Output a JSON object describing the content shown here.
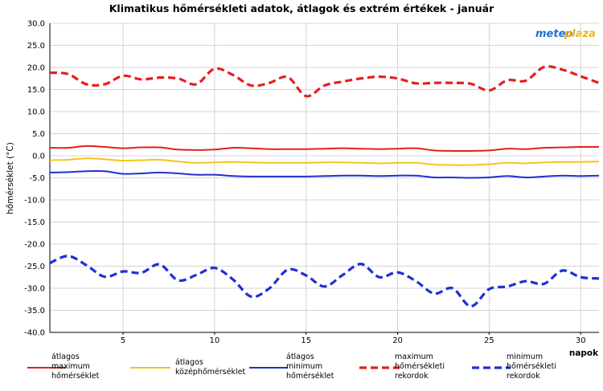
{
  "chart_data": {
    "type": "line",
    "title": "Klimatikus hőmérsékleti adatok, átlagok és extrém értékek - január",
    "ylabel": "hőmérséklet (°C)",
    "xlabel": "napok",
    "xlim": [
      1,
      31
    ],
    "ylim": [
      -40,
      30
    ],
    "y_ticks": [
      "30.0",
      "25.0",
      "20.0",
      "15.0",
      "10.0",
      "5.0",
      "0.0",
      "-5.0",
      "-10.0",
      "-15.0",
      "-20.0",
      "-25.0",
      "-30.0",
      "-35.0",
      "-40.0"
    ],
    "x_ticks": [
      "5",
      "10",
      "15",
      "20",
      "25",
      "30"
    ],
    "grid": true,
    "brand": "meteoplaza",
    "x": [
      1,
      2,
      3,
      4,
      5,
      6,
      7,
      8,
      9,
      10,
      11,
      12,
      13,
      14,
      15,
      16,
      17,
      18,
      19,
      20,
      21,
      22,
      23,
      24,
      25,
      26,
      27,
      28,
      29,
      30,
      31
    ],
    "series": [
      {
        "name": "átlagos maximum hőmérséklet",
        "legend_lines": [
          "átlagos",
          "maximum",
          "hőmérséklet"
        ],
        "color": "#e3201b",
        "style": "solid",
        "values": [
          1.8,
          1.8,
          2.2,
          2.0,
          1.7,
          1.9,
          1.9,
          1.4,
          1.3,
          1.4,
          1.8,
          1.7,
          1.5,
          1.5,
          1.5,
          1.6,
          1.7,
          1.6,
          1.5,
          1.6,
          1.7,
          1.2,
          1.1,
          1.1,
          1.2,
          1.6,
          1.5,
          1.8,
          1.9,
          2.0,
          2.0
        ]
      },
      {
        "name": "átlagos középhőmérséklet",
        "legend_lines": [
          "átlagos",
          "középhőmérséklet"
        ],
        "color": "#f5c518",
        "style": "solid",
        "values": [
          -1.0,
          -0.9,
          -0.6,
          -0.8,
          -1.1,
          -1.0,
          -0.9,
          -1.3,
          -1.6,
          -1.5,
          -1.4,
          -1.5,
          -1.6,
          -1.6,
          -1.6,
          -1.5,
          -1.5,
          -1.6,
          -1.7,
          -1.6,
          -1.6,
          -2.0,
          -2.1,
          -2.1,
          -1.9,
          -1.6,
          -1.7,
          -1.5,
          -1.4,
          -1.4,
          -1.3
        ]
      },
      {
        "name": "átlagos minimum hőmérséklet",
        "legend_lines": [
          "átlagos",
          "minimum",
          "hőmérséklet"
        ],
        "color": "#1f2fd6",
        "style": "solid",
        "values": [
          -3.8,
          -3.7,
          -3.5,
          -3.5,
          -4.1,
          -4.0,
          -3.8,
          -4.0,
          -4.3,
          -4.3,
          -4.6,
          -4.7,
          -4.7,
          -4.7,
          -4.7,
          -4.6,
          -4.5,
          -4.5,
          -4.6,
          -4.5,
          -4.5,
          -4.9,
          -4.9,
          -5.0,
          -4.9,
          -4.6,
          -4.9,
          -4.7,
          -4.5,
          -4.6,
          -4.5
        ]
      },
      {
        "name": "maximum hőmérsékleti rekordok",
        "legend_lines": [
          "maximum",
          "hőmérsékleti",
          "rekordok"
        ],
        "color": "#e3201b",
        "style": "dashed",
        "values": [
          18.8,
          18.5,
          16.2,
          16.2,
          18.1,
          17.3,
          17.7,
          17.5,
          16.2,
          19.7,
          18.3,
          15.9,
          16.5,
          17.8,
          13.5,
          15.9,
          16.8,
          17.5,
          17.9,
          17.5,
          16.4,
          16.5,
          16.5,
          16.3,
          14.8,
          17.1,
          17.0,
          20.1,
          19.5,
          18.0,
          16.5
        ]
      },
      {
        "name": "minimum hőmérsékleti rekordok",
        "legend_lines": [
          "minimum",
          "hőmérsékleti",
          "rekordok"
        ],
        "color": "#1f2fd6",
        "style": "dashed",
        "values": [
          -24.3,
          -22.7,
          -24.8,
          -27.4,
          -26.2,
          -26.5,
          -24.6,
          -28.2,
          -27.0,
          -25.4,
          -28.0,
          -31.9,
          -30.0,
          -25.8,
          -27.1,
          -29.6,
          -27.0,
          -24.5,
          -27.5,
          -26.4,
          -28.4,
          -31.2,
          -30.0,
          -34.1,
          -30.2,
          -29.6,
          -28.4,
          -29.0,
          -26.0,
          -27.5,
          -27.8
        ]
      }
    ]
  }
}
